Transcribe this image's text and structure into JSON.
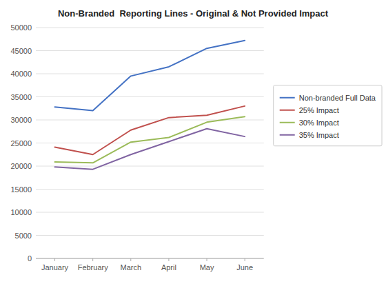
{
  "chart_data": {
    "type": "line",
    "title": "Non-Branded  Reporting Lines - Original & Not Provided Impact",
    "categories": [
      "January",
      "February",
      "March",
      "April",
      "May",
      "June"
    ],
    "series": [
      {
        "name": "Non-branded Full Data",
        "color": "#4472C4",
        "values": [
          32800,
          32000,
          39500,
          41500,
          45500,
          47200
        ]
      },
      {
        "name": "25% Impact",
        "color": "#C0504D",
        "values": [
          24100,
          22500,
          27800,
          30500,
          31000,
          33000
        ]
      },
      {
        "name": "30% Impact",
        "color": "#9BBB59",
        "values": [
          20900,
          20700,
          25200,
          26200,
          29500,
          30700
        ]
      },
      {
        "name": "35% Impact",
        "color": "#8064A2",
        "values": [
          19800,
          19300,
          22500,
          25300,
          28100,
          26400
        ]
      }
    ],
    "ylim": [
      0,
      50000
    ],
    "yticks": [
      0,
      5000,
      10000,
      15000,
      20000,
      25000,
      30000,
      35000,
      40000,
      45000,
      50000
    ],
    "grid": true,
    "legend": "right"
  }
}
